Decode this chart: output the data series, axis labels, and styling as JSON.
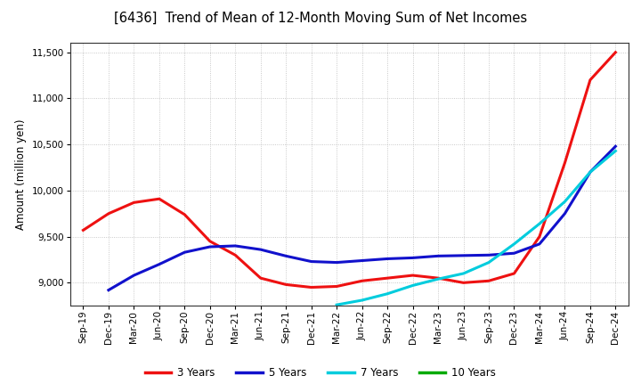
{
  "title": "[6436]  Trend of Mean of 12-Month Moving Sum of Net Incomes",
  "ylabel": "Amount (million yen)",
  "ylim": [
    8750,
    11600
  ],
  "yticks": [
    9000,
    9500,
    10000,
    10500,
    11000,
    11500
  ],
  "background_color": "#ffffff",
  "grid_color": "#bbbbbb",
  "x_labels": [
    "Sep-19",
    "Dec-19",
    "Mar-20",
    "Jun-20",
    "Sep-20",
    "Dec-20",
    "Mar-21",
    "Jun-21",
    "Sep-21",
    "Dec-21",
    "Mar-22",
    "Jun-22",
    "Sep-22",
    "Dec-22",
    "Mar-23",
    "Jun-23",
    "Sep-23",
    "Dec-23",
    "Mar-24",
    "Jun-24",
    "Sep-24",
    "Dec-24"
  ],
  "series_3y_x": [
    0,
    1,
    2,
    3,
    4,
    5,
    6,
    7,
    8,
    9,
    10,
    11,
    12,
    13,
    14,
    15,
    16,
    17,
    18,
    19,
    20,
    21
  ],
  "series_3y_y": [
    9570,
    9750,
    9870,
    9910,
    9740,
    9450,
    9300,
    9050,
    8980,
    8950,
    8960,
    9020,
    9050,
    9080,
    9050,
    9000,
    9020,
    9100,
    9500,
    10300,
    11200,
    11500
  ],
  "series_5y_x": [
    1,
    2,
    3,
    4,
    5,
    6,
    7,
    8,
    9,
    10,
    11,
    12,
    13,
    14,
    15,
    16,
    17,
    18,
    19,
    20,
    21
  ],
  "series_5y_y": [
    8920,
    9080,
    9200,
    9330,
    9390,
    9400,
    9360,
    9290,
    9230,
    9220,
    9240,
    9260,
    9270,
    9290,
    9295,
    9300,
    9320,
    9420,
    9750,
    10200,
    10480
  ],
  "series_7y_x": [
    10,
    11,
    12,
    13,
    14,
    15,
    16,
    17,
    18,
    19,
    20,
    21
  ],
  "series_7y_y": [
    8760,
    8810,
    8880,
    8970,
    9040,
    9100,
    9220,
    9420,
    9640,
    9880,
    10200,
    10430
  ],
  "series_10y_x": [],
  "series_10y_y": [],
  "colors": {
    "3y": "#ee1111",
    "5y": "#1111cc",
    "7y": "#00ccdd",
    "10y": "#00aa00"
  },
  "linewidth": 2.2,
  "legend_labels": [
    "3 Years",
    "5 Years",
    "7 Years",
    "10 Years"
  ],
  "legend_colors": [
    "#ee1111",
    "#1111cc",
    "#00ccdd",
    "#00aa00"
  ],
  "title_fontsize": 10.5,
  "ylabel_fontsize": 8.5,
  "tick_fontsize": 7.5,
  "legend_fontsize": 8.5
}
